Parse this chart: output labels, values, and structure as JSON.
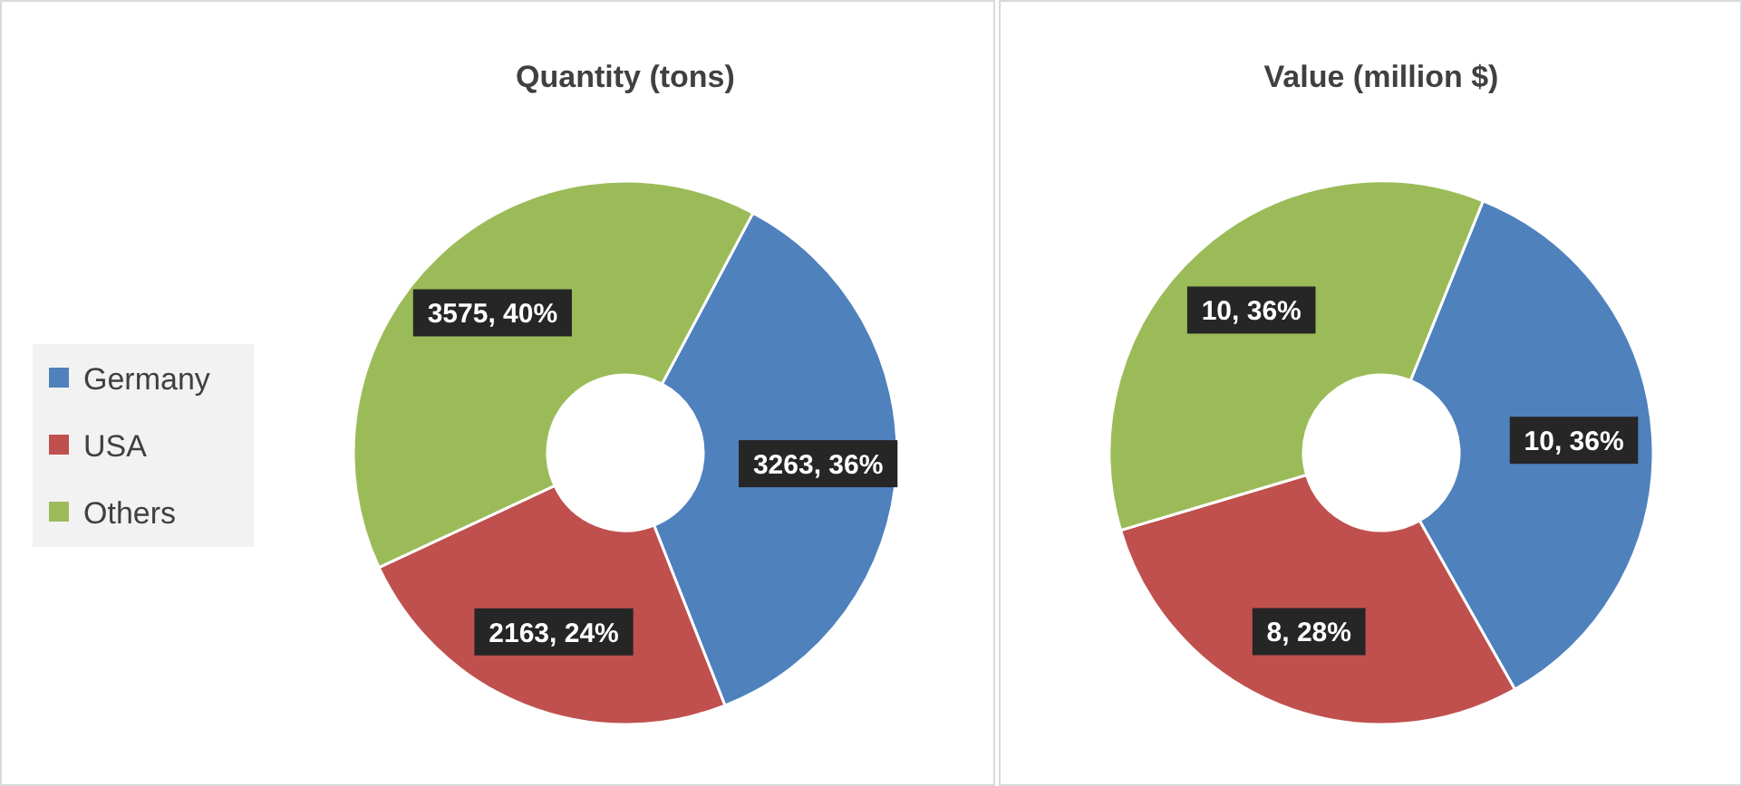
{
  "chart_data": [
    {
      "type": "donut",
      "title": "Quantity (tons)",
      "categories": [
        "Germany",
        "USA",
        "Others"
      ],
      "values": [
        3263,
        2163,
        3575
      ],
      "colors": [
        "#4f81bd",
        "#c0504d",
        "#9bbb59"
      ],
      "value_labels": [
        "3263, 36%",
        "2163, 24%",
        "3575, 40%"
      ],
      "legend": "left"
    },
    {
      "type": "donut",
      "title": "Value (million $)",
      "categories": [
        null,
        null,
        null
      ],
      "values": [
        10,
        8,
        10
      ],
      "colors": [
        "#4f81bd",
        "#c0504d",
        "#9bbb59"
      ],
      "value_labels": [
        "10, 36%",
        "8, 28%",
        "10, 36%"
      ],
      "legend": false
    }
  ]
}
